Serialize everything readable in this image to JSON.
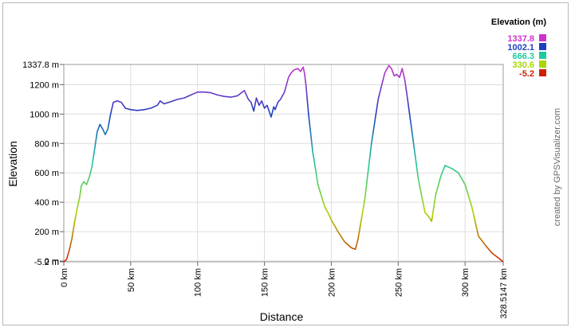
{
  "chart_data": {
    "type": "line",
    "xlabel": "Distance",
    "ylabel": "Elevation",
    "xlim": [
      0,
      328.5147
    ],
    "ylim": [
      -5.2,
      1337.8
    ],
    "x_ticks": [
      {
        "v": 0,
        "label": "0 km"
      },
      {
        "v": 50,
        "label": "50 km"
      },
      {
        "v": 100,
        "label": "100 km"
      },
      {
        "v": 150,
        "label": "150 km"
      },
      {
        "v": 200,
        "label": "200 km"
      },
      {
        "v": 250,
        "label": "250 km"
      },
      {
        "v": 300,
        "label": "300 km"
      },
      {
        "v": 328.5147,
        "label": "328.5147 km"
      }
    ],
    "y_ticks": [
      {
        "v": -5.2,
        "label": "-5.2 m"
      },
      {
        "v": 0,
        "label": "0 m"
      },
      {
        "v": 200,
        "label": "200 m"
      },
      {
        "v": 400,
        "label": "400 m"
      },
      {
        "v": 600,
        "label": "600 m"
      },
      {
        "v": 800,
        "label": "800 m"
      },
      {
        "v": 1000,
        "label": "1000 m"
      },
      {
        "v": 1200,
        "label": "1200 m"
      },
      {
        "v": 1337.8,
        "label": "1337.8 m"
      }
    ],
    "grid": true,
    "legend": {
      "title": "Elevation (m)",
      "placement": "top-right",
      "entries": [
        {
          "label": "1337.8",
          "color": "#cc33cc"
        },
        {
          "label": "1002.1",
          "color": "#1f3fbf"
        },
        {
          "label": "666.3",
          "color": "#20c8a0"
        },
        {
          "label": "330.6",
          "color": "#a8d600"
        },
        {
          "label": "-5.2",
          "color": "#cc2200"
        }
      ]
    },
    "series": [
      {
        "x": [
          0,
          2,
          4,
          6,
          8,
          10,
          12,
          13,
          15,
          17,
          19,
          21,
          23,
          25,
          27,
          29,
          31,
          33,
          35,
          37,
          40,
          43,
          46,
          50,
          55,
          60,
          65,
          70,
          72,
          75,
          80,
          85,
          90,
          95,
          100,
          105,
          110,
          115,
          120,
          125,
          130,
          135,
          138,
          140,
          142,
          144,
          146,
          148,
          150,
          152,
          155,
          157,
          158,
          160,
          162,
          165,
          168,
          170,
          172,
          175,
          177,
          179,
          180,
          181,
          183,
          186,
          190,
          195,
          198,
          200,
          205,
          210,
          215,
          218,
          220,
          225,
          230,
          235,
          240,
          243,
          245,
          247,
          249,
          251,
          253,
          255,
          257,
          260,
          265,
          270,
          273,
          275,
          278,
          282,
          285,
          290,
          295,
          300,
          305,
          310,
          315,
          320,
          325,
          328.5
        ],
        "y": [
          -5,
          10,
          70,
          150,
          260,
          360,
          440,
          510,
          540,
          520,
          570,
          640,
          760,
          880,
          930,
          900,
          860,
          900,
          1000,
          1080,
          1090,
          1080,
          1040,
          1030,
          1025,
          1030,
          1040,
          1060,
          1090,
          1070,
          1085,
          1100,
          1110,
          1130,
          1150,
          1150,
          1145,
          1130,
          1120,
          1115,
          1125,
          1160,
          1100,
          1080,
          1020,
          1110,
          1060,
          1090,
          1040,
          1060,
          980,
          1050,
          1030,
          1080,
          1100,
          1150,
          1250,
          1280,
          1300,
          1310,
          1290,
          1320,
          1275,
          1200,
          1000,
          750,
          520,
          370,
          320,
          280,
          200,
          130,
          90,
          80,
          150,
          420,
          800,
          1100,
          1280,
          1330,
          1310,
          1260,
          1270,
          1250,
          1310,
          1230,
          1100,
          900,
          560,
          330,
          300,
          270,
          450,
          580,
          650,
          630,
          600,
          520,
          370,
          170,
          110,
          55,
          20,
          -5
        ]
      }
    ]
  },
  "watermark": "created by GPSVisualizer.com"
}
